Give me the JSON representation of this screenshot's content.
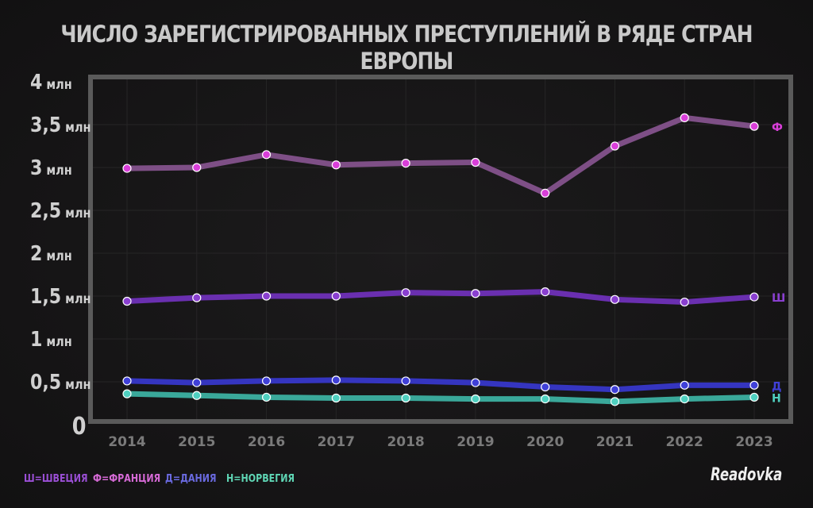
{
  "title": "ЧИСЛО ЗАРЕГИСТРИРОВАННЫХ ПРЕСТУПЛЕНИЙ В РЯДЕ СТРАН ЕВРОПЫ",
  "legend": [
    {
      "text": "Ш=ШВЕЦИЯ",
      "color": "#9b4fd6"
    },
    {
      "text": "Ф=ФРАНЦИЯ",
      "color": "#d66ad6"
    },
    {
      "text": "Д=ДАНИЯ",
      "color": "#6a6ae0"
    },
    {
      "text": "Н=НОРВЕГИЯ",
      "color": "#5fd6b5"
    }
  ],
  "logo": "Readovka",
  "chart_data": {
    "type": "line",
    "title": "ЧИСЛО ЗАРЕГИСТРИРОВАННЫХ ПРЕСТУПЛЕНИЙ В РЯДЕ СТРАН ЕВРОПЫ",
    "x": [
      2014,
      2015,
      2016,
      2017,
      2018,
      2019,
      2020,
      2021,
      2022,
      2023
    ],
    "ylim": [
      0,
      4
    ],
    "yticks": [
      0,
      0.5,
      1,
      1.5,
      2,
      2.5,
      3,
      3.5,
      4
    ],
    "ytick_labels": [
      "0",
      "0,5 млн",
      "1 млн",
      "1,5 млн",
      "2 млн",
      "2,5 млн",
      "3 млн",
      "3,5 млн",
      "4 млн"
    ],
    "grid": true,
    "series": [
      {
        "name": "Ф",
        "line_color": "#7e4f86",
        "point_color": "#d93fd9",
        "values": [
          2.99,
          3.0,
          3.15,
          3.03,
          3.05,
          3.06,
          2.7,
          3.25,
          3.58,
          3.48
        ]
      },
      {
        "name": "Ш",
        "line_color": "#6a2fb0",
        "point_color": "#8a3fd0",
        "values": [
          1.44,
          1.48,
          1.5,
          1.5,
          1.54,
          1.53,
          1.55,
          1.46,
          1.43,
          1.49
        ]
      },
      {
        "name": "Д",
        "line_color": "#3535c0",
        "point_color": "#4040d8",
        "values": [
          0.51,
          0.49,
          0.51,
          0.52,
          0.51,
          0.49,
          0.44,
          0.41,
          0.46,
          0.46
        ]
      },
      {
        "name": "Н",
        "line_color": "#3aa89a",
        "point_color": "#4fd0c0",
        "values": [
          0.36,
          0.34,
          0.32,
          0.31,
          0.31,
          0.3,
          0.3,
          0.27,
          0.3,
          0.32
        ]
      }
    ]
  }
}
